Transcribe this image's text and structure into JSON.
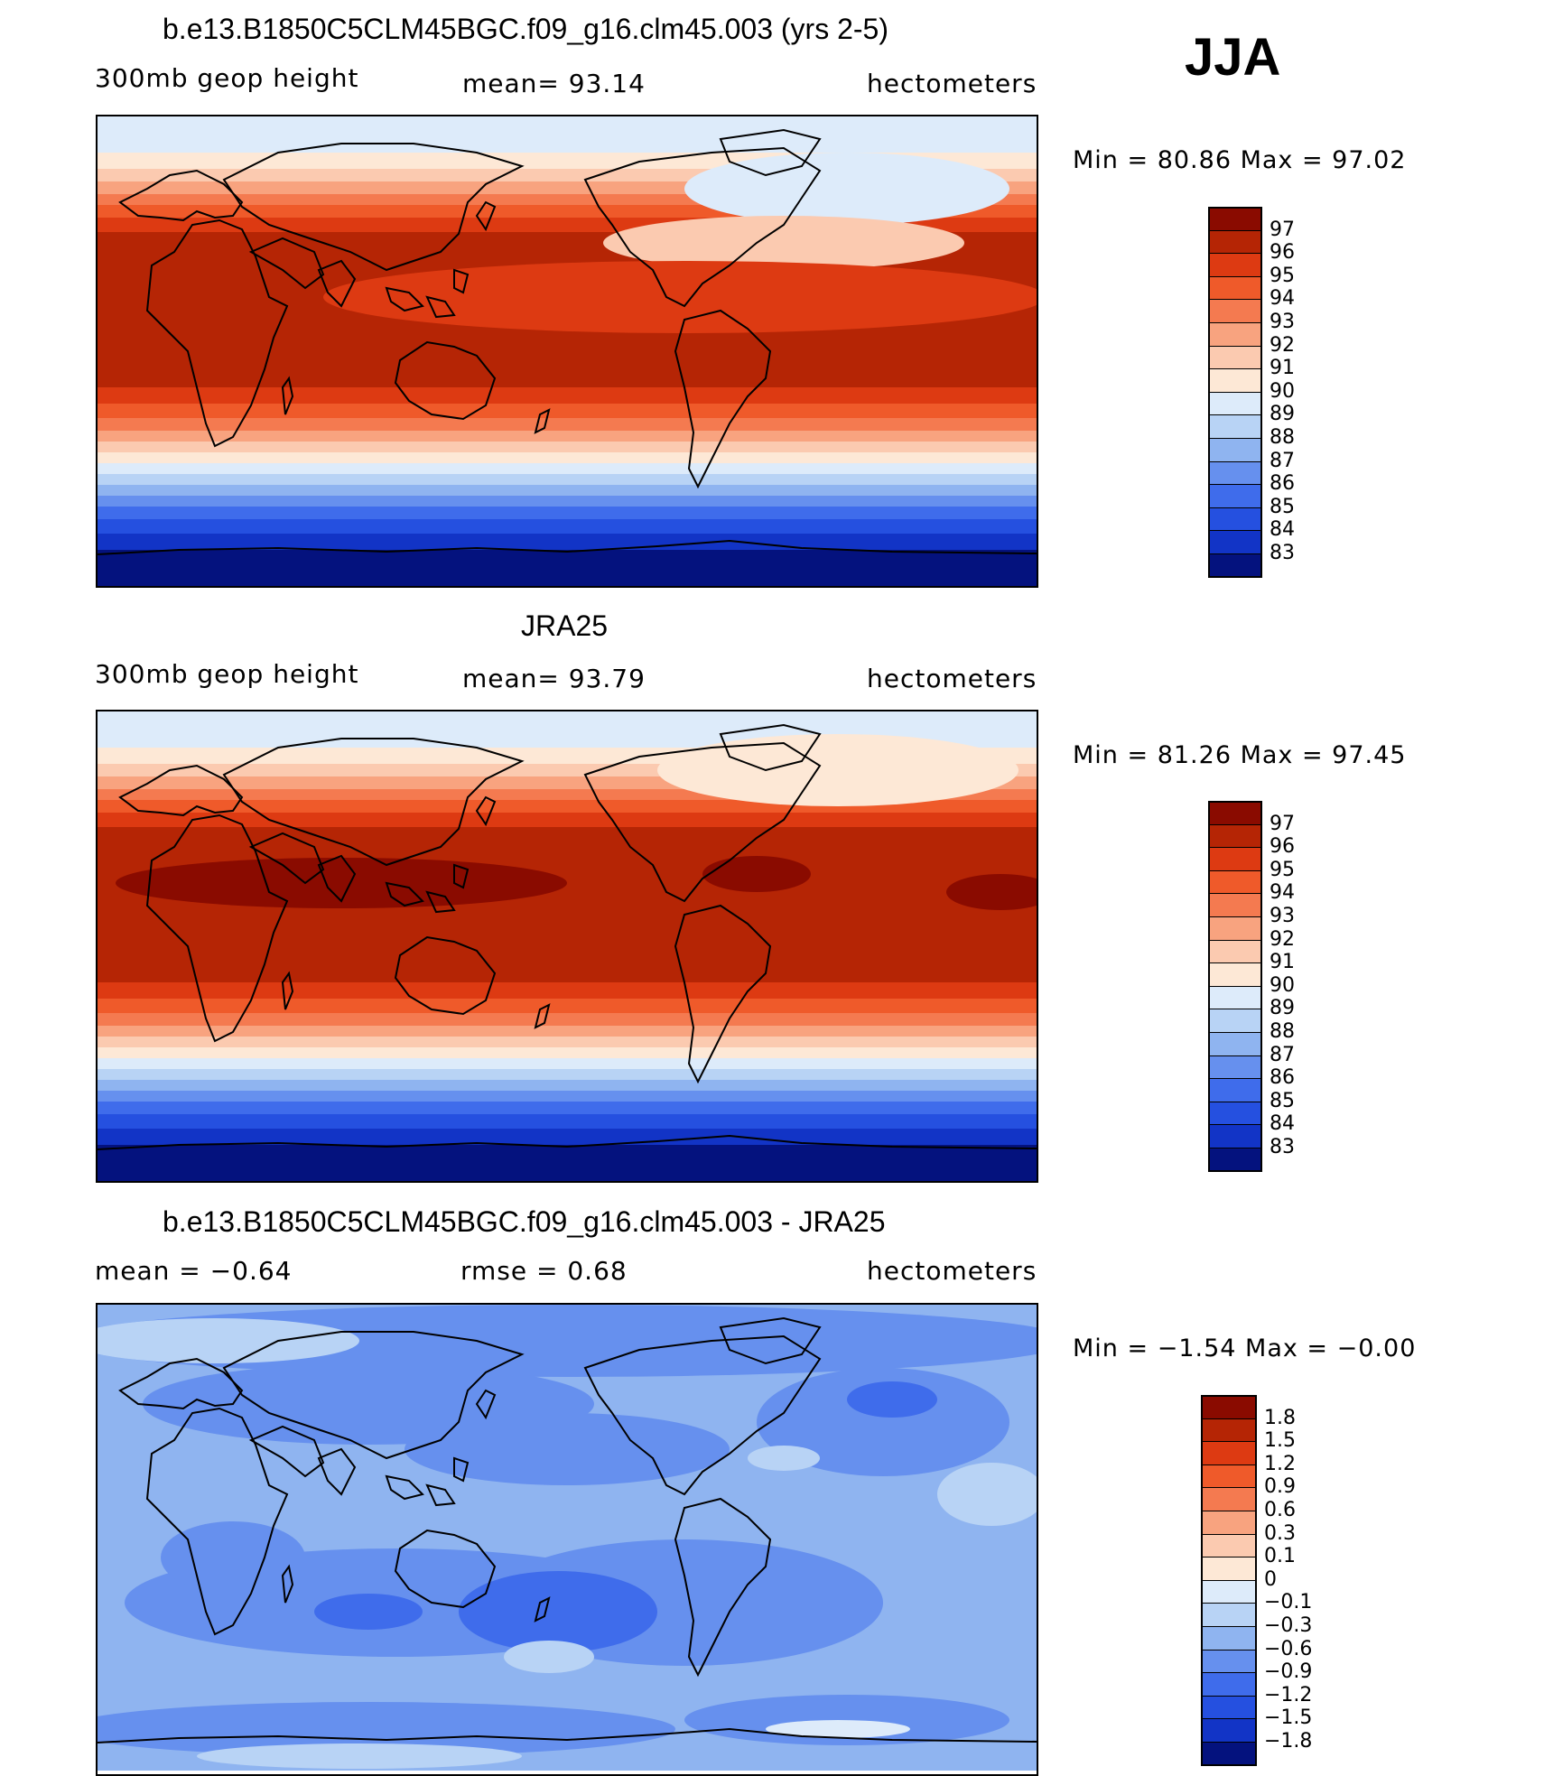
{
  "season": "JJA",
  "palette": {
    "warm": [
      "#fde8d6",
      "#fbcab0",
      "#f8a37f",
      "#f47a50",
      "#ef5a2a",
      "#dd3a12",
      "#b52505",
      "#8a0b00"
    ],
    "cool": [
      "#ddebfa",
      "#b8d3f5",
      "#8fb4f0",
      "#6690ee",
      "#3f6ceb",
      "#2550e0",
      "#1234c6",
      "#04127e"
    ]
  },
  "panels": [
    {
      "title": "b.e13.B1850C5CLM45BGC.f09_g16.clm45.003 (yrs 2-5)",
      "left": "300mb  geop  height",
      "center": "mean=   93.14",
      "right": "hectometers",
      "minmax": "Min  =    80.86  Max  =    97.02",
      "legend": [
        "97",
        "96",
        "95",
        "94",
        "93",
        "92",
        "91",
        "90",
        "89",
        "88",
        "87",
        "86",
        "85",
        "84",
        "83"
      ]
    },
    {
      "title": "JRA25",
      "left": "300mb  geop  height",
      "center": "mean=   93.79",
      "right": "hectometers",
      "minmax": "Min  =    81.26  Max  =    97.45",
      "legend": [
        "97",
        "96",
        "95",
        "94",
        "93",
        "92",
        "91",
        "90",
        "89",
        "88",
        "87",
        "86",
        "85",
        "84",
        "83"
      ]
    },
    {
      "title": "b.e13.B1850C5CLM45BGC.f09_g16.clm45.003 - JRA25",
      "left": "mean  =    −0.64",
      "center": "rmse  =     0.68",
      "right": "hectometers",
      "minmax": "Min  =    −1.54  Max  =    −0.00",
      "legend": [
        "1.8",
        "1.5",
        "1.2",
        "0.9",
        "0.6",
        "0.3",
        "0.1",
        "0",
        "−0.1",
        "−0.3",
        "−0.6",
        "−0.9",
        "−1.2",
        "−1.5",
        "−1.8"
      ]
    }
  ]
}
